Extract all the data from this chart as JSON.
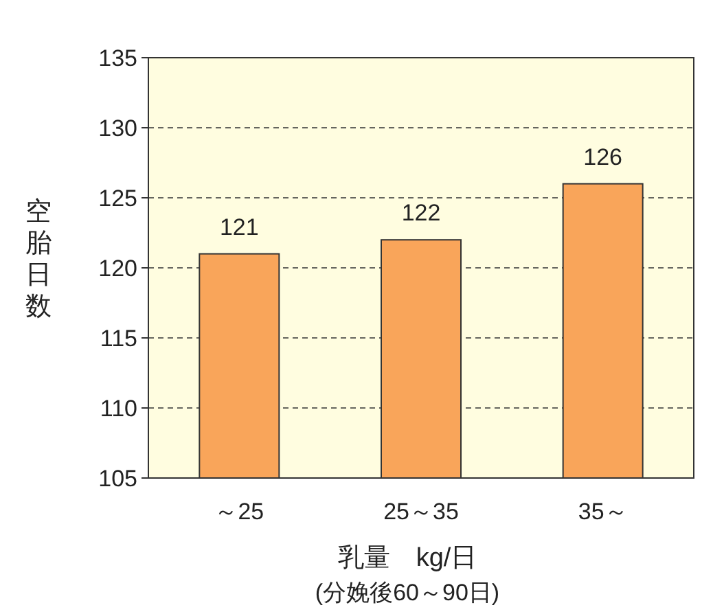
{
  "chart_data": {
    "type": "bar",
    "categories": [
      "～25",
      "25～35",
      "35～"
    ],
    "values": [
      121,
      122,
      126
    ],
    "color": "#f9a55a",
    "ylabel": "空胎日数",
    "xlabel": "乳量　kg/日",
    "annotations": [
      "(分娩後60～90日)"
    ],
    "ylim": [
      105,
      135
    ],
    "yticks": [
      105,
      110,
      115,
      120,
      125,
      130,
      135
    ],
    "grid": "y",
    "data_labels": true
  }
}
